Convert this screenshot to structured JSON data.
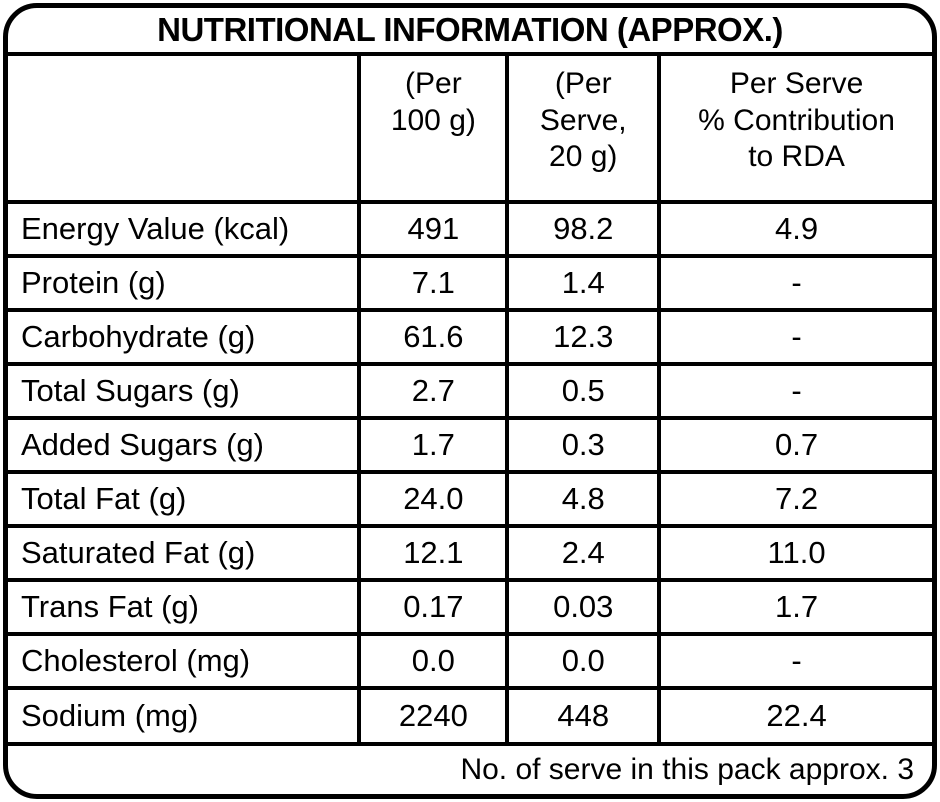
{
  "title": "NUTRITIONAL INFORMATION (APPROX.)",
  "colors": {
    "ink": "#000000",
    "background": "#ffffff"
  },
  "table": {
    "columns": [
      "",
      "(Per\n100 g)",
      "(Per\nServe,\n20 g)",
      "Per Serve\n% Contribution\nto RDA"
    ],
    "rows": [
      {
        "label": "Energy Value (kcal)",
        "per_100g": "491",
        "per_serve": "98.2",
        "rda_pct": "4.9"
      },
      {
        "label": "Protein (g)",
        "per_100g": "7.1",
        "per_serve": "1.4",
        "rda_pct": "-"
      },
      {
        "label": "Carbohydrate (g)",
        "per_100g": "61.6",
        "per_serve": "12.3",
        "rda_pct": "-"
      },
      {
        "label": "Total Sugars (g)",
        "per_100g": "2.7",
        "per_serve": "0.5",
        "rda_pct": "-"
      },
      {
        "label": "Added Sugars (g)",
        "per_100g": "1.7",
        "per_serve": "0.3",
        "rda_pct": "0.7"
      },
      {
        "label": "Total Fat (g)",
        "per_100g": "24.0",
        "per_serve": "4.8",
        "rda_pct": "7.2"
      },
      {
        "label": "Saturated Fat (g)",
        "per_100g": "12.1",
        "per_serve": "2.4",
        "rda_pct": "11.0"
      },
      {
        "label": "Trans Fat (g)",
        "per_100g": "0.17",
        "per_serve": "0.03",
        "rda_pct": "1.7"
      },
      {
        "label": "Cholesterol (mg)",
        "per_100g": "0.0",
        "per_serve": "0.0",
        "rda_pct": "-"
      },
      {
        "label": "Sodium (mg)",
        "per_100g": "2240",
        "per_serve": "448",
        "rda_pct": "22.4"
      }
    ]
  },
  "footer": {
    "note": "No. of serve in this pack approx. 3"
  }
}
